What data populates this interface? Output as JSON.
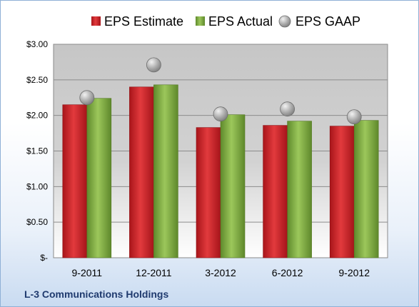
{
  "chart_data": {
    "type": "bar",
    "categories": [
      "9-2011",
      "12-2011",
      "3-2012",
      "6-2012",
      "9-2012"
    ],
    "series": [
      {
        "name": "EPS Estimate",
        "values": [
          2.15,
          2.4,
          1.83,
          1.86,
          1.85
        ]
      },
      {
        "name": "EPS Actual",
        "values": [
          2.24,
          2.43,
          2.01,
          1.92,
          1.93
        ]
      },
      {
        "name": "EPS GAAP",
        "values": [
          2.25,
          2.71,
          2.02,
          2.09,
          1.98
        ],
        "marker": "circle"
      }
    ],
    "yticks": [
      "$-",
      "$0.50",
      "$1.00",
      "$1.50",
      "$2.00",
      "$2.50",
      "$3.00"
    ],
    "ylim": [
      0,
      3
    ],
    "grid": true,
    "legend": "top",
    "caption": "L-3 Communications Holdings",
    "colors": {
      "estimate": "#c0191e",
      "actual": "#77a33a",
      "gaap": "#a9a9a9"
    }
  }
}
